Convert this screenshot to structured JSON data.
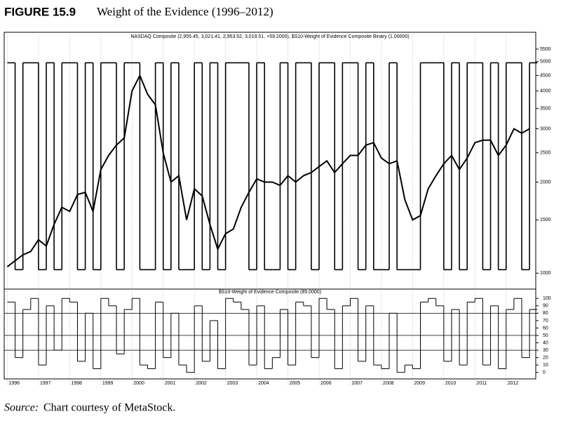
{
  "header": {
    "figure": "FIGURE 15.9",
    "title": "Weight of the Evidence (1996–2012)"
  },
  "source": {
    "label": "Source:",
    "text": "Chart courtesy of MetaStock."
  },
  "chart_data": [
    {
      "type": "line",
      "title": "NASDAQ Composite (2,955.45, 3,021.41, 2,953.52, 3,019.51, +59.2000), $S10-Weight of Evidence Composite Binary (1.00000)",
      "log_scale": true,
      "x": [
        1996,
        1996.25,
        1996.5,
        1996.75,
        1997,
        1997.25,
        1997.5,
        1997.75,
        1998,
        1998.25,
        1998.5,
        1998.75,
        1999,
        1999.25,
        1999.5,
        1999.75,
        2000,
        2000.25,
        2000.5,
        2000.75,
        2001,
        2001.25,
        2001.5,
        2001.75,
        2002,
        2002.25,
        2002.5,
        2002.75,
        2003,
        2003.25,
        2003.5,
        2003.75,
        2004,
        2004.25,
        2004.5,
        2004.75,
        2005,
        2005.25,
        2005.5,
        2005.75,
        2006,
        2006.25,
        2006.5,
        2006.75,
        2007,
        2007.25,
        2007.5,
        2007.75,
        2008,
        2008.25,
        2008.5,
        2008.75,
        2009,
        2009.25,
        2009.5,
        2009.75,
        2010,
        2010.25,
        2010.5,
        2010.75,
        2011,
        2011.25,
        2011.5,
        2011.75,
        2012,
        2012.25,
        2012.5,
        2012.75
      ],
      "xlim": [
        1995.9,
        2012.95
      ],
      "xticks": [
        1996,
        1997,
        1998,
        1999,
        2000,
        2001,
        2002,
        2003,
        2004,
        2005,
        2006,
        2007,
        2008,
        2009,
        2010,
        2011,
        2012
      ],
      "ylim": [
        920,
        5800
      ],
      "yticks": [
        1000,
        1500,
        2000,
        2500,
        3000,
        3500,
        4000,
        4500,
        5000,
        5500
      ],
      "y2lim": [
        -0.07,
        1.1
      ],
      "series": [
        {
          "name": "NASDAQ Composite",
          "color": "#000000",
          "values": [
            1050,
            1100,
            1150,
            1180,
            1290,
            1230,
            1450,
            1650,
            1600,
            1820,
            1850,
            1600,
            2200,
            2450,
            2650,
            2800,
            4000,
            4500,
            3900,
            3600,
            2500,
            2000,
            2100,
            1500,
            1900,
            1800,
            1450,
            1200,
            1350,
            1400,
            1650,
            1850,
            2050,
            2000,
            2000,
            1950,
            2100,
            2000,
            2100,
            2150,
            2250,
            2350,
            2150,
            2300,
            2450,
            2450,
            2650,
            2700,
            2400,
            2300,
            2350,
            1750,
            1500,
            1550,
            1900,
            2100,
            2300,
            2450,
            2200,
            2400,
            2700,
            2750,
            2750,
            2450,
            2650,
            3000,
            2900,
            3000
          ]
        },
        {
          "name": "$S10-Weight of Evidence Composite Binary",
          "color": "#000000",
          "axis": "y2",
          "values": [
            1,
            0,
            1,
            1,
            0,
            1,
            0,
            1,
            1,
            0,
            1,
            0,
            1,
            1,
            0,
            1,
            1,
            0,
            0,
            1,
            0,
            1,
            0,
            0,
            1,
            0,
            1,
            0,
            1,
            1,
            1,
            0,
            1,
            0,
            0,
            1,
            0,
            1,
            1,
            0,
            1,
            1,
            0,
            1,
            1,
            0,
            1,
            0,
            0,
            1,
            0,
            0,
            0,
            1,
            1,
            1,
            0,
            1,
            0,
            1,
            1,
            0,
            1,
            0,
            1,
            1,
            0,
            1
          ]
        }
      ]
    },
    {
      "type": "step",
      "title": "$S10-Weight of Evidence Composite (85.0000)",
      "x": [
        1996,
        1996.25,
        1996.5,
        1996.75,
        1997,
        1997.25,
        1997.5,
        1997.75,
        1998,
        1998.25,
        1998.5,
        1998.75,
        1999,
        1999.25,
        1999.5,
        1999.75,
        2000,
        2000.25,
        2000.5,
        2000.75,
        2001,
        2001.25,
        2001.5,
        2001.75,
        2002,
        2002.25,
        2002.5,
        2002.75,
        2003,
        2003.25,
        2003.5,
        2003.75,
        2004,
        2004.25,
        2004.5,
        2004.75,
        2005,
        2005.25,
        2005.5,
        2005.75,
        2006,
        2006.25,
        2006.5,
        2006.75,
        2007,
        2007.25,
        2007.5,
        2007.75,
        2008,
        2008.25,
        2008.5,
        2008.75,
        2009,
        2009.25,
        2009.5,
        2009.75,
        2010,
        2010.25,
        2010.5,
        2010.75,
        2011,
        2011.25,
        2011.5,
        2011.75,
        2012,
        2012.25,
        2012.5,
        2012.75
      ],
      "xlim": [
        1995.9,
        2012.95
      ],
      "xticks": [
        1996,
        1997,
        1998,
        1999,
        2000,
        2001,
        2002,
        2003,
        2004,
        2005,
        2006,
        2007,
        2008,
        2009,
        2010,
        2011,
        2012
      ],
      "ylim": [
        -5,
        105
      ],
      "yticks": [
        0,
        10,
        20,
        30,
        40,
        50,
        60,
        70,
        80,
        90,
        100
      ],
      "hlines": [
        30,
        50,
        80
      ],
      "series": [
        {
          "name": "$S10-Weight of Evidence Composite",
          "color": "#000000",
          "values": [
            95,
            20,
            85,
            100,
            10,
            90,
            30,
            100,
            95,
            15,
            80,
            5,
            100,
            90,
            25,
            85,
            100,
            10,
            5,
            95,
            20,
            80,
            10,
            0,
            90,
            15,
            70,
            5,
            100,
            95,
            85,
            10,
            90,
            5,
            20,
            85,
            10,
            95,
            90,
            20,
            100,
            85,
            5,
            90,
            100,
            15,
            90,
            10,
            5,
            80,
            0,
            10,
            5,
            95,
            100,
            90,
            15,
            85,
            10,
            95,
            100,
            10,
            90,
            5,
            85,
            100,
            20,
            85
          ]
        }
      ]
    }
  ]
}
